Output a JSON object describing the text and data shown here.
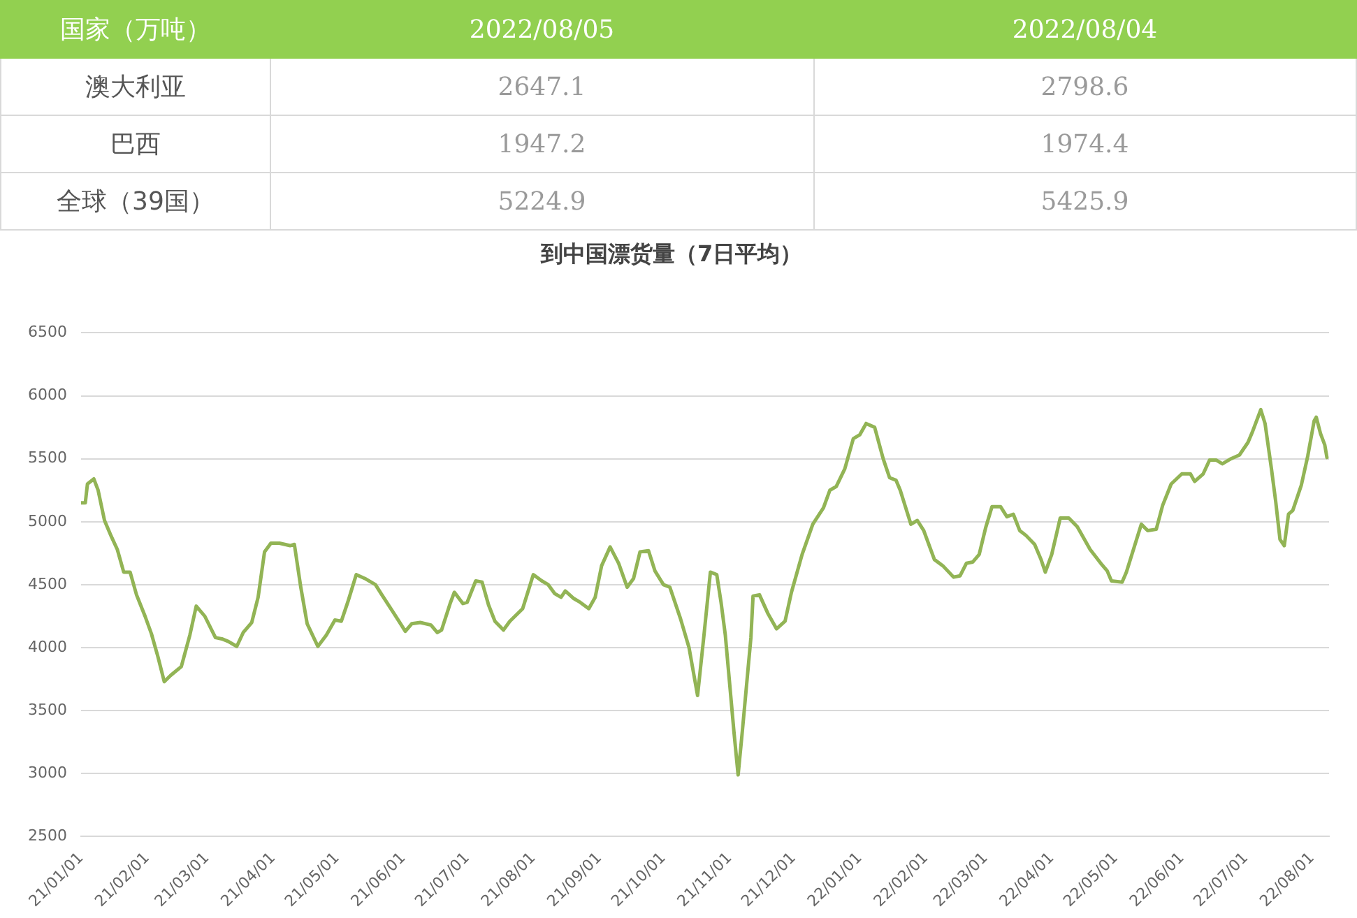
{
  "chart_data": [
    {
      "type": "heatmap",
      "ylabel": "国家（万吨）",
      "categories": [
        "2022/08/05",
        "2022/08/04"
      ],
      "y_categories": [
        "澳大利亚",
        "巴西",
        "全球（39国）"
      ],
      "cells": [
        [
          2647.1,
          2798.6
        ],
        [
          1947.2,
          1974.4
        ],
        [
          5224.9,
          5425.9
        ]
      ],
      "data_labels": true
    },
    {
      "type": "line",
      "title": "到中国漂货量（7日平均）",
      "color": "#92b455",
      "marker": "none",
      "grid": "y",
      "xlim": [
        "2021-01-01",
        "2022-08-09"
      ],
      "xticks": [
        {
          "value": "2021-01-01",
          "label": "21/01/01"
        },
        {
          "value": "2021-02-01",
          "label": "21/02/01"
        },
        {
          "value": "2021-03-01",
          "label": "21/03/01"
        },
        {
          "value": "2021-04-01",
          "label": "21/04/01"
        },
        {
          "value": "2021-05-01",
          "label": "21/05/01"
        },
        {
          "value": "2021-06-01",
          "label": "21/06/01"
        },
        {
          "value": "2021-07-01",
          "label": "21/07/01"
        },
        {
          "value": "2021-08-01",
          "label": "21/08/01"
        },
        {
          "value": "2021-09-01",
          "label": "21/09/01"
        },
        {
          "value": "2021-10-01",
          "label": "21/10/01"
        },
        {
          "value": "2021-11-01",
          "label": "21/11/01"
        },
        {
          "value": "2021-12-01",
          "label": "21/12/01"
        },
        {
          "value": "2022-01-01",
          "label": "22/01/01"
        },
        {
          "value": "2022-02-01",
          "label": "22/02/01"
        },
        {
          "value": "2022-03-01",
          "label": "22/03/01"
        },
        {
          "value": "2022-04-01",
          "label": "22/04/01"
        },
        {
          "value": "2022-05-01",
          "label": "22/05/01"
        },
        {
          "value": "2022-06-01",
          "label": "22/06/01"
        },
        {
          "value": "2022-07-01",
          "label": "22/07/01"
        },
        {
          "value": "2022-08-01",
          "label": "22/08/01"
        }
      ],
      "ylim": [
        2500,
        6500
      ],
      "yticks": [
        2500,
        3000,
        3500,
        4000,
        4500,
        5000,
        5500,
        6000,
        6500
      ],
      "x": [
        "2021-01-01",
        "2021-01-03",
        "2021-01-04",
        "2021-01-07",
        "2021-01-09",
        "2021-01-12",
        "2021-01-15",
        "2021-01-18",
        "2021-01-21",
        "2021-01-24",
        "2021-01-27",
        "2021-01-31",
        "2021-02-03",
        "2021-02-06",
        "2021-02-09",
        "2021-02-12",
        "2021-02-17",
        "2021-02-21",
        "2021-02-24",
        "2021-02-28",
        "2021-03-05",
        "2021-03-08",
        "2021-03-11",
        "2021-03-15",
        "2021-03-18",
        "2021-03-22",
        "2021-03-25",
        "2021-03-28",
        "2021-03-31",
        "2021-04-04",
        "2021-04-09",
        "2021-04-11",
        "2021-04-14",
        "2021-04-17",
        "2021-04-22",
        "2021-04-26",
        "2021-04-30",
        "2021-05-03",
        "2021-05-06",
        "2021-05-10",
        "2021-05-14",
        "2021-05-19",
        "2021-05-22",
        "2021-05-27",
        "2021-05-30",
        "2021-06-02",
        "2021-06-05",
        "2021-06-09",
        "2021-06-14",
        "2021-06-17",
        "2021-06-19",
        "2021-06-23",
        "2021-06-25",
        "2021-06-29",
        "2021-07-01",
        "2021-07-05",
        "2021-07-08",
        "2021-07-11",
        "2021-07-14",
        "2021-07-18",
        "2021-07-21",
        "2021-07-24",
        "2021-07-27",
        "2021-08-01",
        "2021-08-05",
        "2021-08-08",
        "2021-08-11",
        "2021-08-14",
        "2021-08-16",
        "2021-08-20",
        "2021-08-23",
        "2021-08-27",
        "2021-08-30",
        "2021-09-02",
        "2021-09-06",
        "2021-09-10",
        "2021-09-14",
        "2021-09-17",
        "2021-09-20",
        "2021-09-24",
        "2021-09-27",
        "2021-10-01",
        "2021-10-04",
        "2021-10-09",
        "2021-10-13",
        "2021-10-17",
        "2021-10-20",
        "2021-10-23",
        "2021-10-26",
        "2021-10-28",
        "2021-10-30",
        "2021-11-03",
        "2021-11-05",
        "2021-11-07",
        "2021-11-11",
        "2021-11-12",
        "2021-11-15",
        "2021-11-19",
        "2021-11-23",
        "2021-11-27",
        "2021-11-30",
        "2021-12-05",
        "2021-12-10",
        "2021-12-15",
        "2021-12-18",
        "2021-12-21",
        "2021-12-25",
        "2021-12-29",
        "2022-01-01",
        "2022-01-04",
        "2022-01-08",
        "2022-01-12",
        "2022-01-15",
        "2022-01-18",
        "2022-01-20",
        "2022-01-25",
        "2022-01-28",
        "2022-01-31",
        "2022-02-05",
        "2022-02-09",
        "2022-02-14",
        "2022-02-17",
        "2022-02-20",
        "2022-02-23",
        "2022-02-26",
        "2022-03-01",
        "2022-03-04",
        "2022-03-08",
        "2022-03-11",
        "2022-03-14",
        "2022-03-17",
        "2022-03-20",
        "2022-03-24",
        "2022-03-27",
        "2022-03-29",
        "2022-04-01",
        "2022-04-05",
        "2022-04-09",
        "2022-04-13",
        "2022-04-19",
        "2022-04-24",
        "2022-04-27",
        "2022-04-29",
        "2022-05-04",
        "2022-05-06",
        "2022-05-13",
        "2022-05-16",
        "2022-05-20",
        "2022-05-23",
        "2022-05-27",
        "2022-06-01",
        "2022-06-05",
        "2022-06-07",
        "2022-06-11",
        "2022-06-14",
        "2022-06-17",
        "2022-06-20",
        "2022-06-24",
        "2022-06-28",
        "2022-07-02",
        "2022-07-04",
        "2022-07-08",
        "2022-07-10",
        "2022-07-13",
        "2022-07-15",
        "2022-07-17",
        "2022-07-19",
        "2022-07-21",
        "2022-07-23",
        "2022-07-27",
        "2022-07-30",
        "2022-08-02",
        "2022-08-03",
        "2022-08-05",
        "2022-08-07",
        "2022-08-08"
      ],
      "values": [
        5150,
        5150,
        5300,
        5340,
        5250,
        5010,
        4890,
        4780,
        4600,
        4600,
        4420,
        4250,
        4110,
        3930,
        3730,
        3780,
        3850,
        4100,
        4330,
        4250,
        4080,
        4070,
        4050,
        4010,
        4120,
        4200,
        4400,
        4760,
        4830,
        4830,
        4810,
        4820,
        4480,
        4190,
        4010,
        4100,
        4220,
        4210,
        4360,
        4580,
        4550,
        4500,
        4420,
        4290,
        4210,
        4130,
        4190,
        4200,
        4180,
        4120,
        4140,
        4350,
        4440,
        4350,
        4360,
        4530,
        4520,
        4340,
        4210,
        4140,
        4210,
        4260,
        4310,
        4580,
        4530,
        4500,
        4430,
        4400,
        4450,
        4390,
        4360,
        4310,
        4400,
        4650,
        4800,
        4670,
        4480,
        4550,
        4760,
        4770,
        4610,
        4500,
        4480,
        4230,
        4000,
        3620,
        4100,
        4600,
        4580,
        4360,
        4100,
        3340,
        2990,
        3340,
        4080,
        4410,
        4420,
        4270,
        4150,
        4210,
        4440,
        4740,
        4980,
        5110,
        5250,
        5280,
        5420,
        5660,
        5690,
        5780,
        5750,
        5500,
        5350,
        5330,
        5250,
        4980,
        5010,
        4930,
        4700,
        4650,
        4560,
        4570,
        4670,
        4680,
        4740,
        4950,
        5120,
        5120,
        5040,
        5060,
        4930,
        4890,
        4820,
        4700,
        4600,
        4740,
        5030,
        5030,
        4960,
        4780,
        4670,
        4610,
        4530,
        4520,
        4600,
        4980,
        4930,
        4940,
        5130,
        5300,
        5380,
        5380,
        5320,
        5380,
        5490,
        5490,
        5460,
        5500,
        5530,
        5630,
        5710,
        5890,
        5780,
        5420,
        5160,
        4860,
        4810,
        5060,
        5090,
        5290,
        5520,
        5800,
        5830,
        5700,
        5610,
        5510
      ]
    }
  ]
}
